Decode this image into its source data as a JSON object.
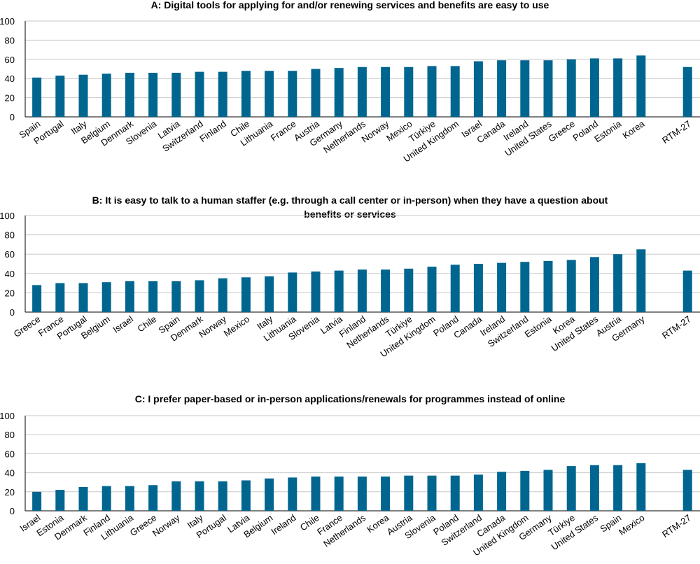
{
  "colors": {
    "bar": "#006690",
    "grid": "#c8c8c8",
    "axis": "#000000"
  },
  "chart_data": [
    {
      "type": "bar",
      "title_lines": [
        "A: Digital tools for applying for and/or renewing services and benefits are easy to use"
      ],
      "ylim": [
        0,
        100
      ],
      "yticks": [
        0,
        20,
        40,
        60,
        80,
        100
      ],
      "grid": true,
      "categories": [
        "Spain",
        "Portugal",
        "Italy",
        "Belgium",
        "Denmark",
        "Slovenia",
        "Latvia",
        "Switzerland",
        "Finland",
        "Chile",
        "Lithuania",
        "France",
        "Austria",
        "Germany",
        "Netherlands",
        "Norway",
        "Mexico",
        "Türkiye",
        "United Kingdom",
        "Israel",
        "Canada",
        "Ireland",
        "United States",
        "Greece",
        "Poland",
        "Estonia",
        "Korea",
        "",
        "RTM-27"
      ],
      "values": [
        41,
        43,
        44,
        45,
        46,
        46,
        46,
        47,
        47,
        48,
        48,
        48,
        50,
        51,
        52,
        52,
        52,
        53,
        53,
        58,
        59,
        59,
        59,
        60,
        61,
        61,
        64,
        null,
        52
      ]
    },
    {
      "type": "bar",
      "title_lines": [
        "B: It is easy to talk to a human staffer (e.g. through a call center or in-person) when they have a question about",
        "benefits or services"
      ],
      "ylim": [
        0,
        100
      ],
      "yticks": [
        0,
        20,
        40,
        60,
        80,
        100
      ],
      "grid": true,
      "categories": [
        "Greece",
        "France",
        "Portugal",
        "Belgium",
        "Israel",
        "Chile",
        "Spain",
        "Denmark",
        "Norway",
        "Mexico",
        "Italy",
        "Lithuania",
        "Slovenia",
        "Latvia",
        "Finland",
        "Netherlands",
        "Türkiye",
        "United Kingdom",
        "Poland",
        "Canada",
        "Ireland",
        "Switzerland",
        "Estonia",
        "Korea",
        "United States",
        "Austria",
        "Germany",
        "",
        "RTM-27"
      ],
      "values": [
        28,
        30,
        30,
        31,
        32,
        32,
        32,
        33,
        35,
        36,
        37,
        41,
        42,
        43,
        44,
        44,
        45,
        47,
        49,
        50,
        51,
        52,
        53,
        54,
        57,
        60,
        65,
        null,
        43
      ]
    },
    {
      "type": "bar",
      "title_lines": [
        "C: I prefer paper-based or in-person applications/renewals for programmes instead of online"
      ],
      "ylim": [
        0,
        100
      ],
      "yticks": [
        0,
        20,
        40,
        60,
        80,
        100
      ],
      "grid": true,
      "categories": [
        "Israel",
        "Estonia",
        "Denmark",
        "Finland",
        "Lithuania",
        "Greece",
        "Norway",
        "Italy",
        "Portugal",
        "Latvia",
        "Belgium",
        "Ireland",
        "Chile",
        "France",
        "Netherlands",
        "Korea",
        "Austria",
        "Slovenia",
        "Poland",
        "Switzerland",
        "Canada",
        "United Kingdom",
        "Germany",
        "Türkiye",
        "United States",
        "Spain",
        "Mexico",
        "",
        "RTM-27"
      ],
      "values": [
        20,
        22,
        25,
        26,
        26,
        27,
        31,
        31,
        31,
        32,
        34,
        35,
        36,
        36,
        36,
        36,
        37,
        37,
        37,
        38,
        41,
        42,
        43,
        47,
        48,
        48,
        50,
        null,
        43
      ]
    }
  ]
}
